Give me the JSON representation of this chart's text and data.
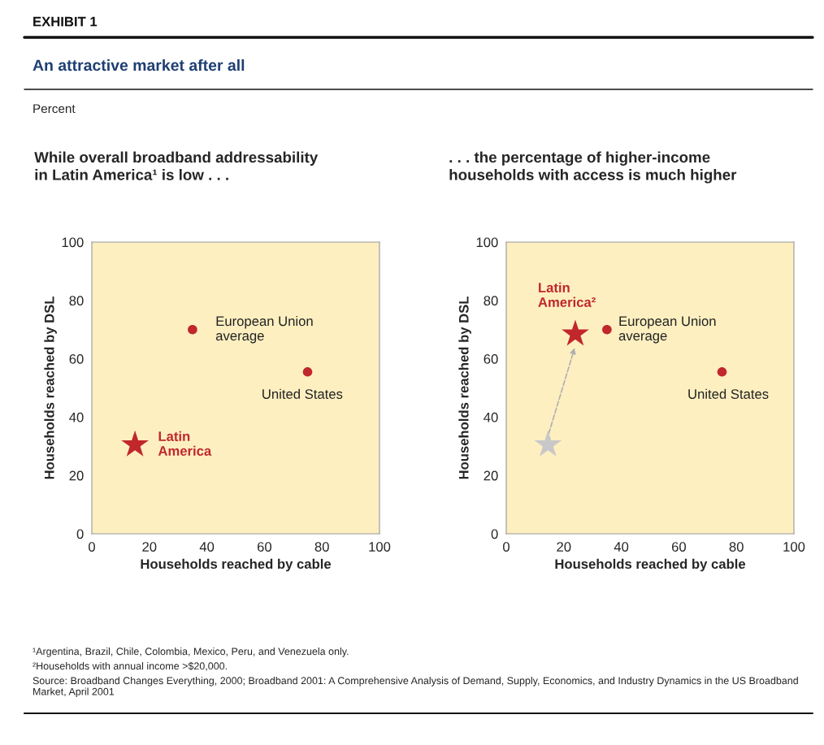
{
  "chart_data": [
    {
      "type": "other",
      "title": "An attractive market after all",
      "subtitle": "Percent",
      "annotations": [
        "EXHIBIT 1",
        "¹Argentina, Brazil, Chile, Colombia, Mexico, Peru, and Venezuela only.",
        "²Households with annual income >$20,000.",
        "Source: Broadband Changes Everything, 2000; Broadband 2001: A Comprehensive Analysis of Demand, Supply, Economics, and Industry Dynamics in the US Broadband Market, April 2001"
      ]
    },
    {
      "type": "scatter",
      "title": "While overall broadband addressability\nin Latin America¹ is low . . .",
      "xlabel": "Households reached by cable",
      "ylabel": "Households reached by DSL",
      "xlim": [
        0,
        100
      ],
      "ylim": [
        0,
        100
      ],
      "xticks": [
        0,
        20,
        40,
        60,
        80,
        100
      ],
      "yticks": [
        0,
        20,
        40,
        60,
        80,
        100
      ],
      "grid": false,
      "legend": false,
      "series": [
        {
          "name": "European Union\naverage",
          "color": "#c1272d",
          "marker": "circle",
          "x": [
            35
          ],
          "values": [
            70
          ]
        },
        {
          "name": "United States",
          "color": "#c1272d",
          "marker": "circle",
          "x": [
            75
          ],
          "values": [
            55.5
          ]
        },
        {
          "name": "Latin\nAmerica",
          "color": "#c1272d",
          "marker": "star",
          "x": [
            15
          ],
          "values": [
            30.5
          ]
        }
      ]
    },
    {
      "type": "scatter",
      "title": ". . . the percentage of higher-income\nhouseholds with access is much higher",
      "xlabel": "Households reached by cable",
      "ylabel": "Households reached by DSL",
      "xlim": [
        0,
        100
      ],
      "ylim": [
        0,
        100
      ],
      "xticks": [
        0,
        20,
        40,
        60,
        80,
        100
      ],
      "yticks": [
        0,
        20,
        40,
        60,
        80,
        100
      ],
      "grid": false,
      "legend": false,
      "series": [
        {
          "color": "#c8c8c8",
          "marker": "star",
          "x": [
            14.5
          ],
          "values": [
            30.5
          ]
        },
        {
          "name": "Latin\nAmerica²",
          "color": "#c1272d",
          "marker": "star",
          "x": [
            24
          ],
          "values": [
            68.5
          ]
        },
        {
          "name": "European Union\naverage",
          "color": "#c1272d",
          "marker": "circle",
          "x": [
            35
          ],
          "values": [
            70
          ]
        },
        {
          "name": "United States",
          "color": "#c1272d",
          "marker": "circle",
          "x": [
            75
          ],
          "values": [
            55.5
          ]
        }
      ]
    }
  ]
}
